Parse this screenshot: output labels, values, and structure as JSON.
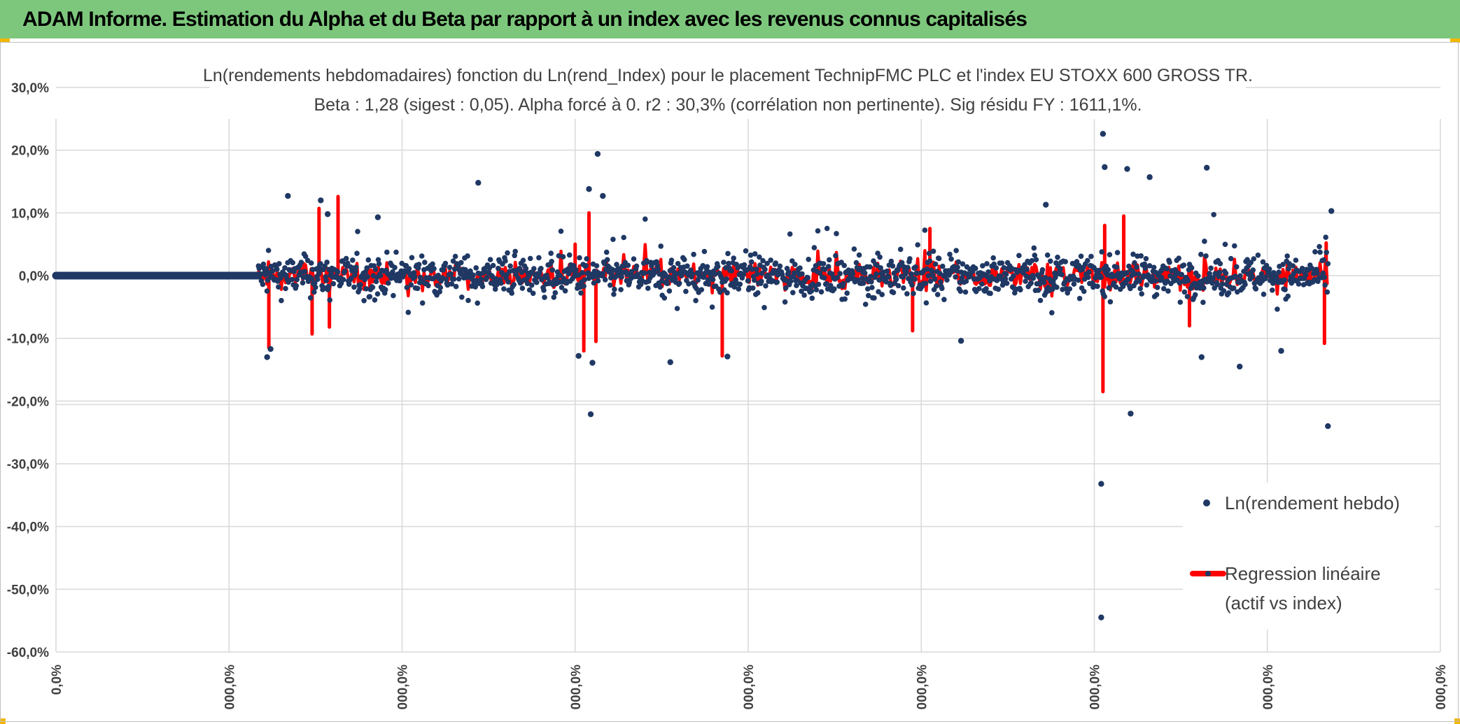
{
  "header": {
    "title": "ADAM Informe. Estimation du Alpha et du Beta par rapport à un index avec les revenus connus capitalisés"
  },
  "colors": {
    "header_bg": "#7dc77d",
    "points": "#1f3864",
    "regression": "#ff0000",
    "grid": "#d9d9d9",
    "text": "#404040"
  },
  "chart_data": {
    "type": "scatter",
    "title": "Ln(rendements hebdomadaires) fonction du Ln(rend_Index) pour le placement TechnipFMC PLC et l'index EU STOXX 600 GROSS TR.",
    "subtitle": "Beta : 1,28 (sigest : 0,05). Alpha forcé à 0. r2 : 30,3% (corrélation non pertinente). Sig résidu FY : 1611,1%.",
    "xlabel": "",
    "ylabel": "",
    "ylim": [
      -0.6,
      0.3
    ],
    "yticks": [
      0.3,
      0.2,
      0.1,
      0.0,
      -0.1,
      -0.2,
      -0.3,
      -0.4,
      -0.5,
      -0.6
    ],
    "ytick_labels": [
      "30,0%",
      "20,0%",
      "10,0%",
      "0,0%",
      "-10,0%",
      "-20,0%",
      "-30,0%",
      "-40,0%",
      "-50,0%",
      "-60,0%"
    ],
    "xlim": [
      0,
      8
    ],
    "xticks": [
      0,
      1,
      2,
      3,
      4,
      5,
      6,
      7,
      8
    ],
    "xtick_labels": [
      "0,0%",
      "000,0%",
      "000,0%",
      "000,0%",
      "000,0%",
      "000,0%",
      "000,0%",
      "000,0%",
      "000,0%"
    ],
    "series": [
      {
        "name": "Ln(rendement hebdo)",
        "kind": "points",
        "x_range": [
          0.0,
          7.35
        ],
        "flat_zero_until": 1.17,
        "typical_spread": 0.03,
        "outliers": [
          {
            "x": 1.22,
            "y": -0.13
          },
          {
            "x": 1.24,
            "y": -0.117
          },
          {
            "x": 1.34,
            "y": 0.127
          },
          {
            "x": 1.53,
            "y": 0.12
          },
          {
            "x": 1.57,
            "y": 0.098
          },
          {
            "x": 1.86,
            "y": 0.093
          },
          {
            "x": 2.44,
            "y": 0.148
          },
          {
            "x": 3.08,
            "y": 0.138
          },
          {
            "x": 3.13,
            "y": 0.194
          },
          {
            "x": 3.16,
            "y": 0.127
          },
          {
            "x": 3.1,
            "y": -0.139
          },
          {
            "x": 3.09,
            "y": -0.221
          },
          {
            "x": 3.02,
            "y": -0.128
          },
          {
            "x": 3.55,
            "y": -0.138
          },
          {
            "x": 3.88,
            "y": -0.129
          },
          {
            "x": 5.23,
            "y": -0.104
          },
          {
            "x": 6.05,
            "y": 0.226
          },
          {
            "x": 6.06,
            "y": 0.173
          },
          {
            "x": 6.04,
            "y": -0.332
          },
          {
            "x": 6.04,
            "y": -0.545
          },
          {
            "x": 6.19,
            "y": 0.17
          },
          {
            "x": 6.21,
            "y": -0.22
          },
          {
            "x": 6.32,
            "y": 0.157
          },
          {
            "x": 6.65,
            "y": 0.172
          },
          {
            "x": 6.62,
            "y": -0.13
          },
          {
            "x": 6.84,
            "y": -0.145
          },
          {
            "x": 7.08,
            "y": -0.12
          },
          {
            "x": 7.35,
            "y": -0.24
          },
          {
            "x": 7.37,
            "y": 0.103
          },
          {
            "x": 5.72,
            "y": 0.113
          }
        ]
      },
      {
        "name": "Regression linéaire (actif vs index)",
        "kind": "line",
        "x_range": [
          1.17,
          7.35
        ],
        "spikes": [
          {
            "x": 1.23,
            "y": -0.115
          },
          {
            "x": 1.48,
            "y": -0.093
          },
          {
            "x": 1.52,
            "y": 0.107
          },
          {
            "x": 1.58,
            "y": -0.082
          },
          {
            "x": 1.63,
            "y": 0.126
          },
          {
            "x": 3.0,
            "y": 0.05
          },
          {
            "x": 3.05,
            "y": -0.12
          },
          {
            "x": 3.08,
            "y": 0.1
          },
          {
            "x": 3.12,
            "y": -0.105
          },
          {
            "x": 3.85,
            "y": -0.128
          },
          {
            "x": 4.95,
            "y": -0.088
          },
          {
            "x": 5.05,
            "y": 0.075
          },
          {
            "x": 6.05,
            "y": -0.185
          },
          {
            "x": 6.06,
            "y": 0.08
          },
          {
            "x": 6.17,
            "y": 0.095
          },
          {
            "x": 6.55,
            "y": -0.08
          },
          {
            "x": 7.33,
            "y": -0.108
          },
          {
            "x": 7.34,
            "y": 0.052
          }
        ]
      }
    ],
    "legend": [
      {
        "label": "Ln(rendement hebdo)",
        "marker": "dot"
      },
      {
        "label_line1": "Regression linéaire",
        "label_line2": "(actif vs index)",
        "marker": "line"
      }
    ]
  }
}
